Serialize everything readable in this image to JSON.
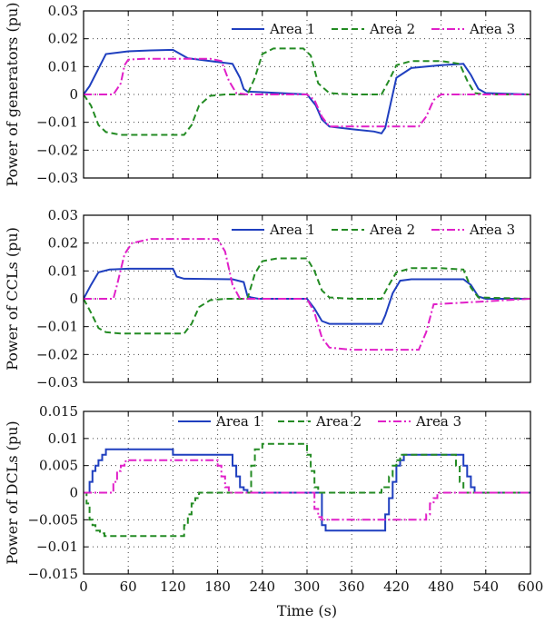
{
  "chart_data": [
    {
      "type": "line",
      "ylabel": "Power of generators (pu)",
      "xlim": [
        0,
        600
      ],
      "ylim": [
        -0.03,
        0.03
      ],
      "yticks": [
        -0.03,
        -0.02,
        -0.01,
        0,
        0.01,
        0.02,
        0.03
      ],
      "ytick_labels": [
        "−0.03",
        "−0.02",
        "−0.01",
        "0",
        "0.01",
        "0.02",
        "0.03"
      ],
      "grid": true,
      "legend": "top-right",
      "series": [
        {
          "name": "Area 1",
          "color": "#1f3fbf",
          "style": "solid",
          "x": [
            0,
            8,
            30,
            60,
            90,
            120,
            140,
            175,
            200,
            210,
            215,
            220,
            240,
            300,
            312,
            320,
            330,
            360,
            390,
            400,
            405,
            410,
            420,
            440,
            480,
            510,
            520,
            530,
            540,
            600
          ],
          "y": [
            0,
            0.003,
            0.0145,
            0.0155,
            0.0158,
            0.016,
            0.013,
            0.0118,
            0.011,
            0.006,
            0.002,
            0.001,
            0.0008,
            0,
            -0.004,
            -0.009,
            -0.0115,
            -0.0125,
            -0.0133,
            -0.014,
            -0.012,
            -0.006,
            0.006,
            0.0095,
            0.0105,
            0.011,
            0.007,
            0.002,
            0.0005,
            0
          ]
        },
        {
          "name": "Area 2",
          "color": "#238b23",
          "style": "dashed",
          "x": [
            0,
            10,
            20,
            30,
            50,
            80,
            110,
            135,
            145,
            155,
            170,
            190,
            220,
            230,
            240,
            255,
            295,
            305,
            315,
            330,
            360,
            400,
            410,
            420,
            440,
            480,
            505,
            515,
            525,
            540,
            600
          ],
          "y": [
            0,
            -0.004,
            -0.011,
            -0.0135,
            -0.0145,
            -0.0145,
            -0.0145,
            -0.0145,
            -0.011,
            -0.004,
            -0.0005,
            0,
            0,
            0.006,
            0.0145,
            0.0165,
            0.0165,
            0.014,
            0.004,
            0.0005,
            0,
            0,
            0.005,
            0.0105,
            0.012,
            0.012,
            0.011,
            0.005,
            0.0005,
            0,
            0
          ]
        },
        {
          "name": "Area 3",
          "color": "#e020c8",
          "style": "dashdot",
          "x": [
            0,
            40,
            50,
            55,
            60,
            80,
            120,
            170,
            185,
            195,
            205,
            220,
            300,
            310,
            320,
            330,
            360,
            450,
            460,
            470,
            480,
            500,
            520,
            530,
            545,
            600
          ],
          "y": [
            0,
            0,
            0.004,
            0.0105,
            0.0125,
            0.0128,
            0.0128,
            0.0128,
            0.012,
            0.005,
            0.0005,
            0,
            0,
            -0.002,
            -0.008,
            -0.0115,
            -0.0115,
            -0.0115,
            -0.008,
            -0.002,
            0,
            0,
            0,
            0,
            0,
            0
          ]
        }
      ]
    },
    {
      "type": "line",
      "ylabel": "Power of CCLs (pu)",
      "xlim": [
        0,
        600
      ],
      "ylim": [
        -0.03,
        0.03
      ],
      "yticks": [
        -0.03,
        -0.02,
        -0.01,
        0,
        0.01,
        0.02,
        0.03
      ],
      "ytick_labels": [
        "−0.03",
        "−0.02",
        "−0.01",
        "0",
        "0.01",
        "0.02",
        "0.03"
      ],
      "grid": true,
      "legend": "top-right",
      "series": [
        {
          "name": "Area 1",
          "color": "#1f3fbf",
          "style": "solid",
          "x": [
            0,
            10,
            20,
            35,
            60,
            100,
            120,
            125,
            135,
            200,
            215,
            220,
            225,
            235,
            300,
            310,
            320,
            330,
            360,
            400,
            405,
            415,
            425,
            440,
            480,
            510,
            520,
            530,
            540,
            600
          ],
          "y": [
            0,
            0.005,
            0.0095,
            0.0105,
            0.0108,
            0.0108,
            0.0108,
            0.008,
            0.0072,
            0.007,
            0.006,
            0.001,
            0.0005,
            0,
            0,
            -0.0035,
            -0.008,
            -0.009,
            -0.009,
            -0.009,
            -0.006,
            0.002,
            0.0065,
            0.007,
            0.007,
            0.007,
            0.005,
            0.0008,
            0,
            0
          ]
        },
        {
          "name": "Area 2",
          "color": "#238b23",
          "style": "dashed",
          "x": [
            0,
            10,
            20,
            30,
            50,
            100,
            135,
            145,
            155,
            170,
            190,
            220,
            230,
            240,
            260,
            300,
            310,
            320,
            330,
            360,
            400,
            410,
            420,
            440,
            480,
            510,
            520,
            530,
            600
          ],
          "y": [
            0,
            -0.005,
            -0.0105,
            -0.012,
            -0.0125,
            -0.0125,
            -0.0125,
            -0.009,
            -0.003,
            -0.0005,
            0,
            0,
            0.009,
            0.0135,
            0.0145,
            0.0145,
            0.01,
            0.003,
            0.0005,
            0,
            0,
            0.005,
            0.0095,
            0.011,
            0.011,
            0.0105,
            0.004,
            0.0005,
            0
          ]
        },
        {
          "name": "Area 3",
          "color": "#e020c8",
          "style": "dashdot",
          "x": [
            0,
            40,
            45,
            55,
            65,
            90,
            150,
            180,
            190,
            200,
            210,
            300,
            310,
            320,
            330,
            360,
            420,
            450,
            460,
            470,
            600
          ],
          "y": [
            0,
            0,
            0.005,
            0.016,
            0.02,
            0.0215,
            0.0215,
            0.0215,
            0.017,
            0.005,
            0,
            0,
            -0.005,
            -0.014,
            -0.0175,
            -0.0183,
            -0.0183,
            -0.0183,
            -0.012,
            -0.002,
            0
          ]
        }
      ]
    },
    {
      "type": "line",
      "ylabel": "Power of DCLs (pu)",
      "xlabel": "Time (s)",
      "xlim": [
        0,
        600
      ],
      "ylim": [
        -0.015,
        0.015
      ],
      "yticks": [
        -0.015,
        -0.01,
        -0.005,
        0,
        0.005,
        0.01,
        0.015
      ],
      "ytick_labels": [
        "−0.015",
        "−0.01",
        "−0.005",
        "0",
        "0.005",
        "0.01",
        "0.015"
      ],
      "xticks": [
        0,
        60,
        120,
        180,
        240,
        300,
        360,
        420,
        480,
        540,
        600
      ],
      "xtick_labels": [
        "0",
        "60",
        "120",
        "180",
        "240",
        "300",
        "360",
        "420",
        "480",
        "540",
        "600"
      ],
      "grid": true,
      "legend": "top-center",
      "series": [
        {
          "name": "Area 1",
          "color": "#1f3fbf",
          "style": "solid",
          "x": [
            0,
            8,
            8,
            12,
            12,
            16,
            16,
            20,
            20,
            25,
            25,
            30,
            30,
            120,
            120,
            200,
            200,
            205,
            205,
            210,
            210,
            215,
            215,
            220,
            220,
            320,
            320,
            325,
            325,
            405,
            405,
            410,
            410,
            415,
            415,
            420,
            420,
            425,
            425,
            430,
            430,
            510,
            510,
            515,
            515,
            520,
            520,
            525,
            525,
            600
          ],
          "y": [
            0,
            0,
            0.002,
            0.002,
            0.004,
            0.004,
            0.005,
            0.005,
            0.006,
            0.006,
            0.007,
            0.007,
            0.008,
            0.008,
            0.007,
            0.007,
            0.005,
            0.005,
            0.003,
            0.003,
            0.001,
            0.001,
            0.0005,
            0.0005,
            0,
            0,
            -0.006,
            -0.006,
            -0.007,
            -0.007,
            -0.004,
            -0.004,
            -0.001,
            -0.001,
            0.002,
            0.002,
            0.005,
            0.005,
            0.006,
            0.006,
            0.007,
            0.007,
            0.005,
            0.005,
            0.003,
            0.003,
            0.001,
            0.001,
            0,
            0
          ]
        },
        {
          "name": "Area 2",
          "color": "#238b23",
          "style": "dashed",
          "x": [
            0,
            4,
            4,
            8,
            8,
            12,
            12,
            16,
            16,
            22,
            22,
            28,
            28,
            135,
            135,
            140,
            140,
            145,
            145,
            150,
            150,
            155,
            155,
            160,
            160,
            225,
            225,
            230,
            230,
            240,
            240,
            300,
            300,
            305,
            305,
            310,
            310,
            315,
            315,
            400,
            400,
            410,
            410,
            415,
            415,
            420,
            420,
            425,
            425,
            430,
            430,
            500,
            500,
            505,
            505,
            510,
            510,
            600
          ],
          "y": [
            0,
            0,
            -0.002,
            -0.002,
            -0.005,
            -0.005,
            -0.006,
            -0.006,
            -0.007,
            -0.007,
            -0.0075,
            -0.0075,
            -0.008,
            -0.008,
            -0.006,
            -0.006,
            -0.004,
            -0.004,
            -0.002,
            -0.002,
            -0.001,
            -0.001,
            0,
            0,
            0,
            0,
            0.005,
            0.005,
            0.008,
            0.008,
            0.009,
            0.009,
            0.007,
            0.007,
            0.004,
            0.004,
            0.001,
            0.001,
            0,
            0,
            0.001,
            0.001,
            0.003,
            0.003,
            0.005,
            0.005,
            0.006,
            0.006,
            0.007,
            0.007,
            0.007,
            0.007,
            0.005,
            0.005,
            0.002,
            0.002,
            0,
            0
          ]
        },
        {
          "name": "Area 3",
          "color": "#e020c8",
          "style": "dashdot",
          "x": [
            0,
            40,
            40,
            45,
            45,
            50,
            50,
            55,
            55,
            60,
            60,
            180,
            180,
            185,
            185,
            190,
            190,
            195,
            195,
            310,
            310,
            315,
            315,
            320,
            320,
            460,
            460,
            465,
            465,
            470,
            470,
            475,
            475,
            600
          ],
          "y": [
            0,
            0,
            0.002,
            0.002,
            0.004,
            0.004,
            0.005,
            0.005,
            0.0058,
            0.0058,
            0.006,
            0.006,
            0.005,
            0.005,
            0.003,
            0.003,
            0.001,
            0.001,
            0,
            0,
            -0.003,
            -0.003,
            -0.0045,
            -0.0045,
            -0.005,
            -0.005,
            -0.004,
            -0.004,
            -0.002,
            -0.002,
            -0.001,
            -0.001,
            0,
            0
          ]
        }
      ]
    }
  ]
}
